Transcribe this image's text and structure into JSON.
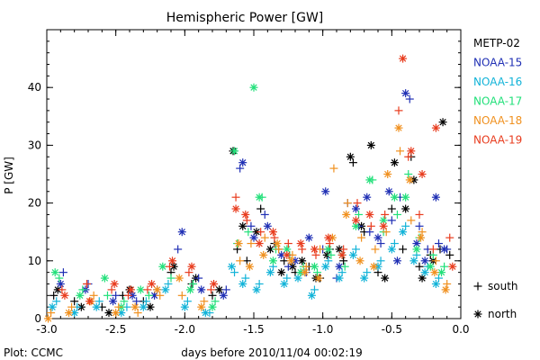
{
  "chart_data": {
    "type": "scatter",
    "title": "Hemispheric Power [GW]",
    "xlabel": "days before 2010/11/04 00:02:19",
    "ylabel": "P [GW]",
    "footer": "Plot: CCMC",
    "xlim": [
      -3.0,
      0.0
    ],
    "ylim": [
      0,
      50
    ],
    "xticks": [
      -3.0,
      -2.5,
      -2.0,
      -1.5,
      -1.0,
      -0.5,
      0.0
    ],
    "xtick_labels": [
      "-3.0",
      "-2.5",
      "-2.0",
      "-1.5",
      "-1.0",
      "-0.5",
      "0.0"
    ],
    "yticks": [
      0,
      10,
      20,
      30,
      40
    ],
    "ytick_labels": [
      "0",
      "10",
      "20",
      "30",
      "40"
    ],
    "grid": false,
    "legend_position": "right",
    "marker_legend": [
      {
        "symbol": "+",
        "label": "south"
      },
      {
        "symbol": "*",
        "label": "north"
      }
    ],
    "series": [
      {
        "name": "METP-02",
        "color": "#000000",
        "south": [
          [
            -2.95,
            4
          ],
          [
            -2.8,
            3
          ],
          [
            -2.6,
            2
          ],
          [
            -2.45,
            4
          ],
          [
            -2.3,
            3
          ],
          [
            -2.1,
            8
          ],
          [
            -1.95,
            6
          ],
          [
            -1.8,
            4
          ],
          [
            -1.62,
            12
          ],
          [
            -1.55,
            10
          ],
          [
            -1.45,
            19
          ],
          [
            -1.35,
            13
          ],
          [
            -1.28,
            10
          ],
          [
            -1.2,
            8
          ],
          [
            -1.1,
            9
          ],
          [
            -1.02,
            7
          ],
          [
            -0.95,
            12
          ],
          [
            -0.85,
            10
          ],
          [
            -0.78,
            27
          ],
          [
            -0.7,
            15
          ],
          [
            -0.6,
            8
          ],
          [
            -0.5,
            19
          ],
          [
            -0.42,
            12
          ],
          [
            -0.36,
            28
          ],
          [
            -0.3,
            9
          ],
          [
            -0.22,
            11
          ],
          [
            -0.15,
            12
          ],
          [
            -0.08,
            11
          ]
        ],
        "north": [
          [
            -2.92,
            5
          ],
          [
            -2.75,
            2
          ],
          [
            -2.55,
            1
          ],
          [
            -2.4,
            5
          ],
          [
            -2.25,
            2
          ],
          [
            -2.08,
            9
          ],
          [
            -1.92,
            7
          ],
          [
            -1.75,
            5
          ],
          [
            -1.65,
            29
          ],
          [
            -1.58,
            16
          ],
          [
            -1.48,
            15
          ],
          [
            -1.38,
            12
          ],
          [
            -1.3,
            8
          ],
          [
            -1.22,
            9
          ],
          [
            -1.15,
            10
          ],
          [
            -1.05,
            7
          ],
          [
            -0.97,
            11
          ],
          [
            -0.88,
            12
          ],
          [
            -0.8,
            28
          ],
          [
            -0.72,
            16
          ],
          [
            -0.65,
            30
          ],
          [
            -0.55,
            7
          ],
          [
            -0.48,
            27
          ],
          [
            -0.4,
            19
          ],
          [
            -0.34,
            24
          ],
          [
            -0.28,
            7
          ],
          [
            -0.2,
            10
          ],
          [
            -0.13,
            34
          ]
        ]
      },
      {
        "name": "NOAA-15",
        "color": "#1f2fb4",
        "south": [
          [
            -2.88,
            8
          ],
          [
            -2.7,
            6
          ],
          [
            -2.5,
            4
          ],
          [
            -2.35,
            3
          ],
          [
            -2.2,
            5
          ],
          [
            -2.05,
            12
          ],
          [
            -1.9,
            7
          ],
          [
            -1.7,
            5
          ],
          [
            -1.6,
            26
          ],
          [
            -1.52,
            16
          ],
          [
            -1.42,
            18
          ],
          [
            -1.32,
            12
          ],
          [
            -1.25,
            9
          ],
          [
            -1.12,
            8
          ],
          [
            -1.0,
            12
          ],
          [
            -0.9,
            7
          ],
          [
            -0.82,
            20
          ],
          [
            -0.74,
            16
          ],
          [
            -0.66,
            15
          ],
          [
            -0.58,
            13
          ],
          [
            -0.5,
            17
          ],
          [
            -0.44,
            21
          ],
          [
            -0.37,
            38
          ],
          [
            -0.3,
            16
          ],
          [
            -0.24,
            12
          ],
          [
            -0.16,
            13
          ],
          [
            -0.1,
            12
          ]
        ],
        "north": [
          [
            -2.9,
            6
          ],
          [
            -2.72,
            5
          ],
          [
            -2.52,
            3
          ],
          [
            -2.38,
            4
          ],
          [
            -2.22,
            4
          ],
          [
            -2.02,
            15
          ],
          [
            -1.88,
            5
          ],
          [
            -1.72,
            4
          ],
          [
            -1.58,
            27
          ],
          [
            -1.5,
            14
          ],
          [
            -1.4,
            16
          ],
          [
            -1.3,
            11
          ],
          [
            -1.2,
            10
          ],
          [
            -1.1,
            14
          ],
          [
            -0.98,
            22
          ],
          [
            -0.88,
            9
          ],
          [
            -0.76,
            19
          ],
          [
            -0.68,
            21
          ],
          [
            -0.6,
            14
          ],
          [
            -0.52,
            22
          ],
          [
            -0.46,
            10
          ],
          [
            -0.4,
            39
          ],
          [
            -0.32,
            13
          ],
          [
            -0.26,
            10
          ],
          [
            -0.18,
            21
          ],
          [
            -0.12,
            12
          ]
        ]
      },
      {
        "name": "NOAA-16",
        "color": "#12b3d8",
        "south": [
          [
            -2.93,
            3
          ],
          [
            -2.78,
            2
          ],
          [
            -2.62,
            3
          ],
          [
            -2.42,
            2
          ],
          [
            -2.28,
            3
          ],
          [
            -2.12,
            6
          ],
          [
            -1.98,
            3
          ],
          [
            -1.82,
            1
          ],
          [
            -1.64,
            8
          ],
          [
            -1.56,
            7
          ],
          [
            -1.46,
            6
          ],
          [
            -1.36,
            9
          ],
          [
            -1.26,
            7
          ],
          [
            -1.16,
            8
          ],
          [
            -1.06,
            5
          ],
          [
            -0.96,
            10
          ],
          [
            -0.86,
            8
          ],
          [
            -0.76,
            12
          ],
          [
            -0.68,
            8
          ],
          [
            -0.58,
            10
          ],
          [
            -0.48,
            13
          ],
          [
            -0.4,
            16
          ],
          [
            -0.32,
            11
          ],
          [
            -0.24,
            9
          ],
          [
            -0.16,
            7
          ]
        ],
        "north": [
          [
            -2.96,
            2
          ],
          [
            -2.8,
            1
          ],
          [
            -2.64,
            2
          ],
          [
            -2.46,
            1
          ],
          [
            -2.3,
            2
          ],
          [
            -2.14,
            5
          ],
          [
            -2.0,
            2
          ],
          [
            -1.85,
            1
          ],
          [
            -1.66,
            9
          ],
          [
            -1.58,
            6
          ],
          [
            -1.48,
            5
          ],
          [
            -1.38,
            8
          ],
          [
            -1.28,
            6
          ],
          [
            -1.18,
            7
          ],
          [
            -1.08,
            4
          ],
          [
            -0.98,
            9
          ],
          [
            -0.88,
            7
          ],
          [
            -0.78,
            11
          ],
          [
            -0.7,
            7
          ],
          [
            -0.6,
            9
          ],
          [
            -0.5,
            12
          ],
          [
            -0.42,
            15
          ],
          [
            -0.34,
            10
          ],
          [
            -0.26,
            8
          ],
          [
            -0.18,
            6
          ]
        ]
      },
      {
        "name": "NOAA-17",
        "color": "#22e07a",
        "south": [
          [
            -2.91,
            7
          ],
          [
            -2.74,
            5
          ],
          [
            -2.56,
            4
          ],
          [
            -2.44,
            3
          ],
          [
            -2.26,
            4
          ],
          [
            -2.1,
            7
          ],
          [
            -1.94,
            6
          ],
          [
            -1.78,
            3
          ],
          [
            -1.62,
            13
          ],
          [
            -1.54,
            15
          ],
          [
            -1.44,
            21
          ],
          [
            -1.34,
            12
          ],
          [
            -1.24,
            11
          ],
          [
            -1.14,
            9
          ],
          [
            -1.04,
            8
          ],
          [
            -0.94,
            11
          ],
          [
            -0.84,
            9
          ],
          [
            -0.74,
            18
          ],
          [
            -0.64,
            24
          ],
          [
            -0.56,
            15
          ],
          [
            -0.46,
            18
          ],
          [
            -0.38,
            25
          ],
          [
            -0.3,
            14
          ],
          [
            -0.2,
            11
          ],
          [
            -0.12,
            9
          ]
        ],
        "north": [
          [
            -2.94,
            8
          ],
          [
            -2.76,
            4
          ],
          [
            -2.58,
            7
          ],
          [
            -2.46,
            2
          ],
          [
            -2.32,
            5
          ],
          [
            -2.16,
            9
          ],
          [
            -1.96,
            5
          ],
          [
            -1.8,
            2
          ],
          [
            -1.64,
            29
          ],
          [
            -1.5,
            40
          ],
          [
            -1.46,
            21
          ],
          [
            -1.36,
            10
          ],
          [
            -1.26,
            12
          ],
          [
            -1.16,
            8
          ],
          [
            -1.06,
            9
          ],
          [
            -0.96,
            12
          ],
          [
            -0.86,
            11
          ],
          [
            -0.76,
            16
          ],
          [
            -0.66,
            24
          ],
          [
            -0.56,
            17
          ],
          [
            -0.48,
            21
          ],
          [
            -0.4,
            21
          ],
          [
            -0.32,
            12
          ],
          [
            -0.22,
            9
          ],
          [
            -0.14,
            8
          ]
        ]
      },
      {
        "name": "NOAA-18",
        "color": "#f0901e",
        "south": [
          [
            -2.97,
            1
          ],
          [
            -2.82,
            2
          ],
          [
            -2.66,
            4
          ],
          [
            -2.48,
            2
          ],
          [
            -2.34,
            1
          ],
          [
            -2.18,
            4
          ],
          [
            -2.02,
            4
          ],
          [
            -1.86,
            3
          ],
          [
            -1.6,
            10
          ],
          [
            -1.52,
            13
          ],
          [
            -1.42,
            14
          ],
          [
            -1.32,
            12
          ],
          [
            -1.22,
            11
          ],
          [
            -1.12,
            9
          ],
          [
            -1.02,
            12
          ],
          [
            -0.92,
            26
          ],
          [
            -0.82,
            20
          ],
          [
            -0.72,
            14
          ],
          [
            -0.62,
            12
          ],
          [
            -0.54,
            15
          ],
          [
            -0.44,
            29
          ],
          [
            -0.36,
            17
          ],
          [
            -0.28,
            15
          ],
          [
            -0.18,
            10
          ],
          [
            -0.1,
            6
          ]
        ],
        "north": [
          [
            -2.99,
            0
          ],
          [
            -2.84,
            1
          ],
          [
            -2.68,
            3
          ],
          [
            -2.5,
            1
          ],
          [
            -2.36,
            2
          ],
          [
            -2.2,
            5
          ],
          [
            -2.04,
            7
          ],
          [
            -1.88,
            2
          ],
          [
            -1.61,
            13
          ],
          [
            -1.53,
            9
          ],
          [
            -1.43,
            11
          ],
          [
            -1.33,
            13
          ],
          [
            -1.23,
            10
          ],
          [
            -1.13,
            8
          ],
          [
            -1.03,
            7
          ],
          [
            -0.93,
            14
          ],
          [
            -0.83,
            18
          ],
          [
            -0.73,
            10
          ],
          [
            -0.63,
            9
          ],
          [
            -0.53,
            25
          ],
          [
            -0.45,
            33
          ],
          [
            -0.37,
            24
          ],
          [
            -0.29,
            14
          ],
          [
            -0.19,
            8
          ],
          [
            -0.11,
            5
          ]
        ]
      },
      {
        "name": "NOAA-19",
        "color": "#e83c1e",
        "south": [
          [
            -2.89,
            5
          ],
          [
            -2.71,
            6
          ],
          [
            -2.53,
            5
          ],
          [
            -2.41,
            4
          ],
          [
            -2.27,
            5
          ],
          [
            -2.11,
            9
          ],
          [
            -1.97,
            8
          ],
          [
            -1.81,
            5
          ],
          [
            -1.63,
            21
          ],
          [
            -1.55,
            17
          ],
          [
            -1.45,
            15
          ],
          [
            -1.35,
            14
          ],
          [
            -1.25,
            13
          ],
          [
            -1.15,
            12
          ],
          [
            -1.05,
            11
          ],
          [
            -0.95,
            13
          ],
          [
            -0.85,
            12
          ],
          [
            -0.75,
            20
          ],
          [
            -0.65,
            16
          ],
          [
            -0.55,
            18
          ],
          [
            -0.45,
            36
          ],
          [
            -0.38,
            28
          ],
          [
            -0.3,
            18
          ],
          [
            -0.2,
            12
          ],
          [
            -0.08,
            14
          ]
        ],
        "north": [
          [
            -2.87,
            4
          ],
          [
            -2.69,
            3
          ],
          [
            -2.51,
            6
          ],
          [
            -2.39,
            5
          ],
          [
            -2.24,
            6
          ],
          [
            -2.09,
            10
          ],
          [
            -1.95,
            9
          ],
          [
            -1.79,
            6
          ],
          [
            -1.63,
            19
          ],
          [
            -1.56,
            18
          ],
          [
            -1.46,
            13
          ],
          [
            -1.36,
            15
          ],
          [
            -1.26,
            11
          ],
          [
            -1.16,
            13
          ],
          [
            -1.06,
            12
          ],
          [
            -0.96,
            14
          ],
          [
            -0.86,
            11
          ],
          [
            -0.76,
            17
          ],
          [
            -0.66,
            18
          ],
          [
            -0.56,
            16
          ],
          [
            -0.42,
            45
          ],
          [
            -0.36,
            29
          ],
          [
            -0.28,
            25
          ],
          [
            -0.18,
            33
          ],
          [
            -0.06,
            9
          ]
        ]
      }
    ]
  }
}
